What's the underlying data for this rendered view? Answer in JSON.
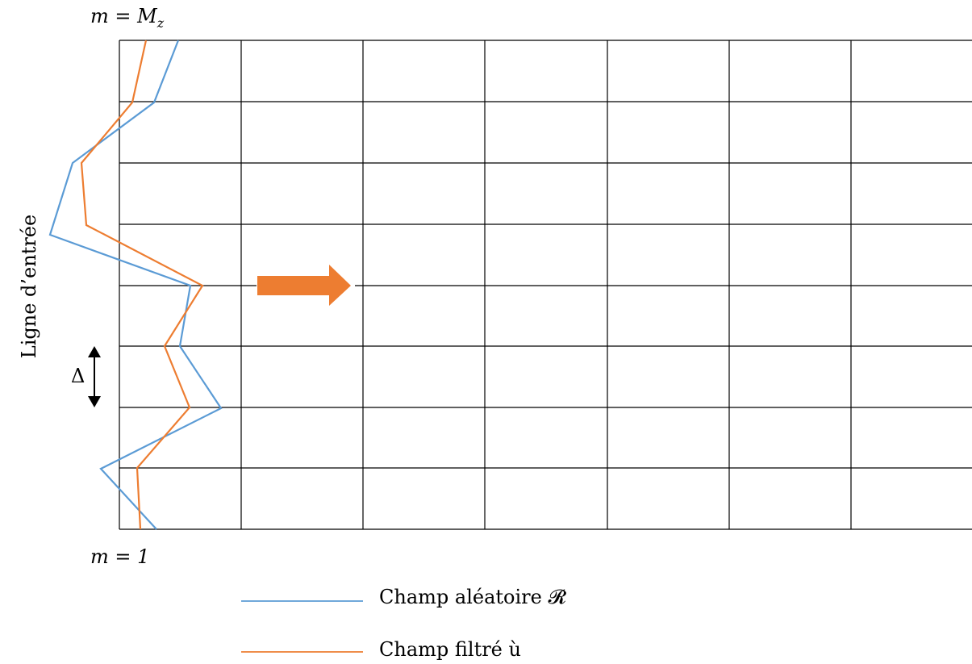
{
  "labels": {
    "top_prefix": "m = M",
    "top_sub": "z",
    "bottom": "m = 1",
    "side": "Ligne d’entrée",
    "delta": "Δ"
  },
  "legend": [
    {
      "label": "Champ aléatoire 𝓡",
      "color": "#5b9bd5"
    },
    {
      "label": "Champ filtré ù",
      "color": "#ed7d31"
    }
  ],
  "colors": {
    "grid": "#000000",
    "random_field": "#5b9bd5",
    "filtered_field": "#ed7d31",
    "arrow": "#ed7d31"
  }
}
